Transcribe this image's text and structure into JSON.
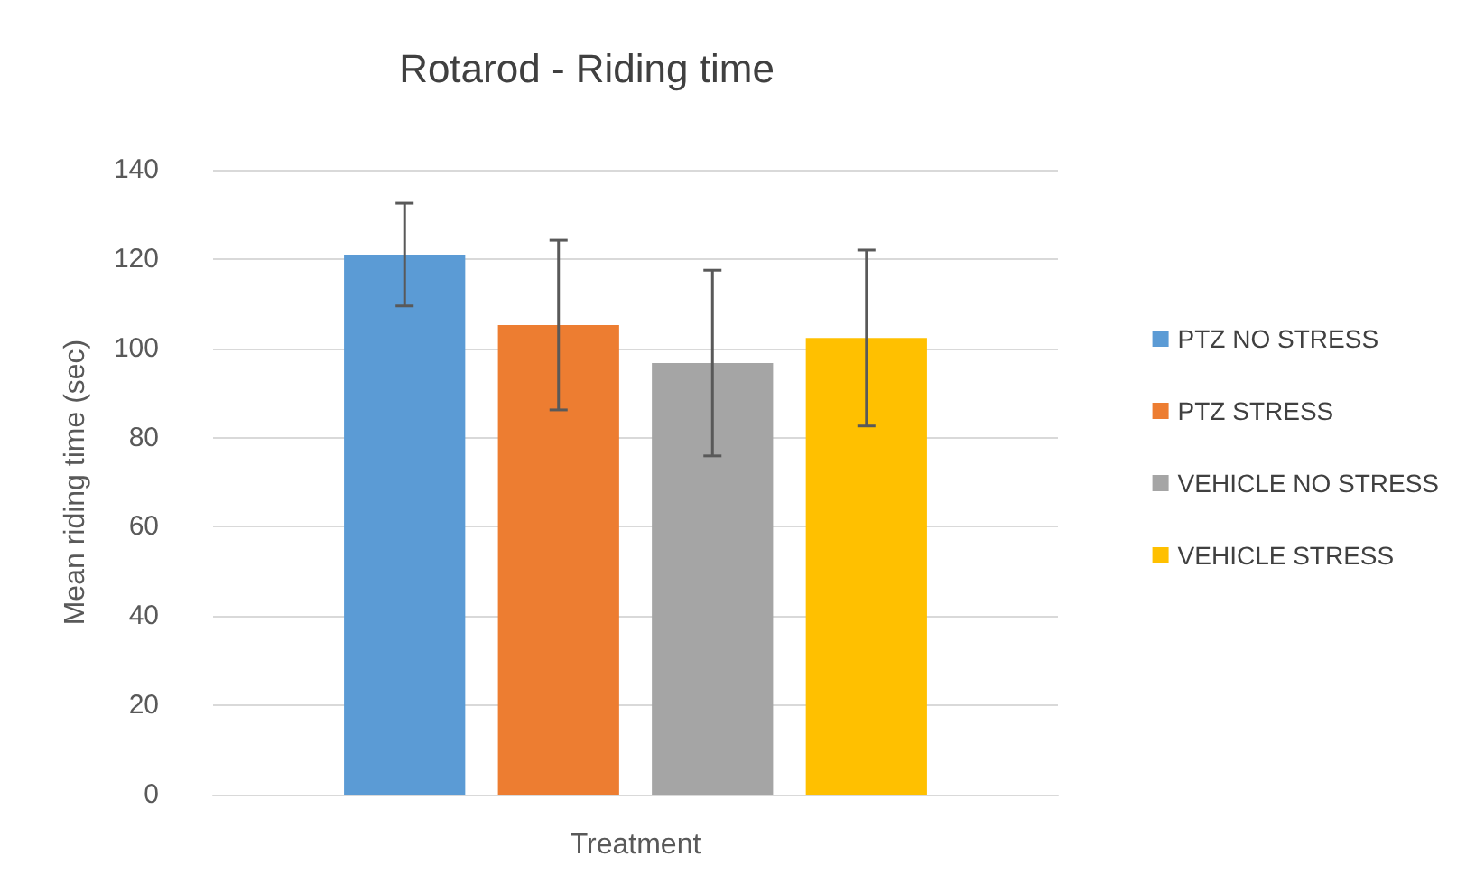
{
  "chart_data": {
    "type": "bar",
    "title": "Rotarod - Riding time",
    "xlabel": "Treatment",
    "ylabel": "Mean riding time (sec)",
    "categories": [
      null
    ],
    "series": [
      {
        "name": "PTZ NO STRESS",
        "color": "#5b9bd5",
        "values": [
          121
        ],
        "errors": [
          11.5
        ]
      },
      {
        "name": "PTZ STRESS",
        "color": "#ed7d31",
        "values": [
          105.2
        ],
        "errors": [
          19
        ]
      },
      {
        "name": "VEHICLE NO STRESS",
        "color": "#a5a5a5",
        "values": [
          96.7
        ],
        "errors": [
          20.8
        ]
      },
      {
        "name": "VEHICLE STRESS",
        "color": "#ffc000",
        "values": [
          102.3
        ],
        "errors": [
          19.7
        ]
      }
    ],
    "ylim": [
      0,
      140
    ],
    "yticks": [
      0,
      20,
      40,
      60,
      80,
      100,
      120,
      140
    ],
    "grid": "y",
    "legend": "right"
  }
}
